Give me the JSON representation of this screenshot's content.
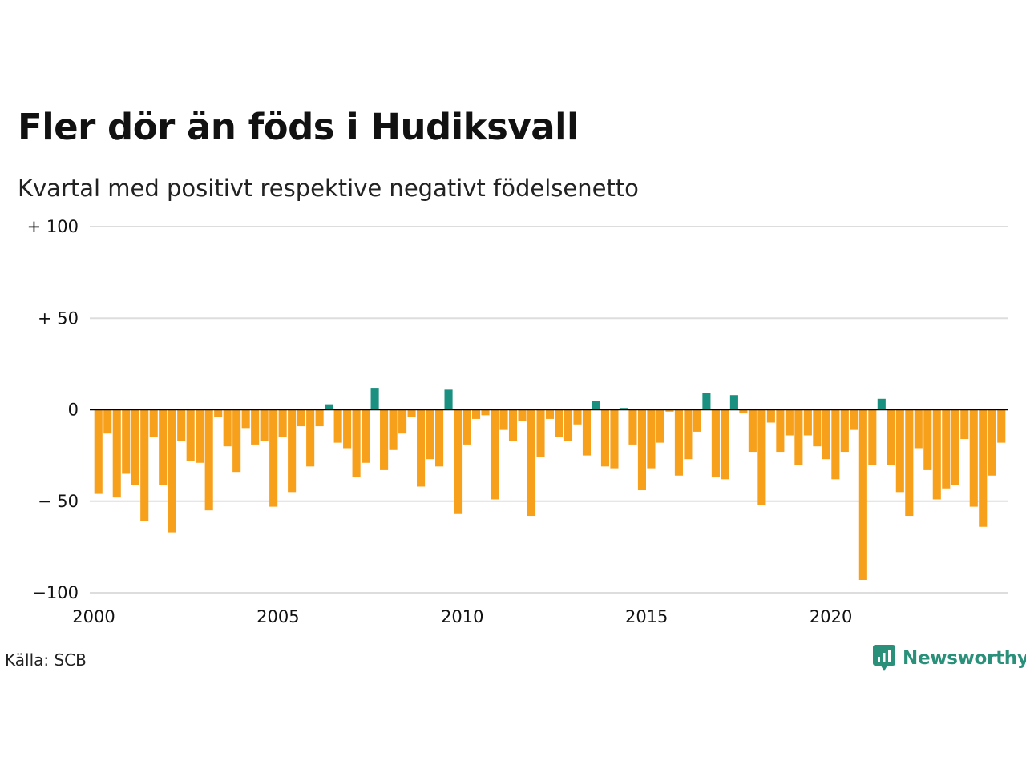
{
  "title": "Fler dör än föds i Hudiksvall",
  "subtitle": "Kvartal med positivt respektive negativt födelsenetto",
  "source": "Källa: SCB",
  "brand": "Newsworthy",
  "colors": {
    "positive": "#1a9080",
    "negative": "#f7a01c",
    "grid": "#dddddd",
    "zero": "#000000",
    "brand": "#2a9079"
  },
  "chart_data": {
    "type": "bar",
    "ylim": [
      -100,
      100
    ],
    "y_ticks": [
      {
        "value": 100,
        "label": "+ 100"
      },
      {
        "value": 50,
        "label": "+  50"
      },
      {
        "value": 0,
        "label": "0"
      },
      {
        "value": -50,
        "label": "− 50"
      },
      {
        "value": -100,
        "label": "−100"
      }
    ],
    "x_ticks": [
      {
        "year": 2000,
        "label": "2000"
      },
      {
        "year": 2005,
        "label": "2005"
      },
      {
        "year": 2010,
        "label": "2010"
      },
      {
        "year": 2015,
        "label": "2015"
      },
      {
        "year": 2020,
        "label": "2020"
      }
    ],
    "first_quarter": "2000Q1",
    "values": [
      -46,
      -13,
      -48,
      -35,
      -41,
      -61,
      -15,
      -41,
      -67,
      -17,
      -28,
      -29,
      -55,
      -4,
      -20,
      -34,
      -10,
      -19,
      -17,
      -53,
      -15,
      -45,
      -9,
      -31,
      -9,
      3,
      -18,
      -21,
      -37,
      -29,
      12,
      -33,
      -22,
      -13,
      -4,
      -42,
      -27,
      -31,
      11,
      -57,
      -19,
      -5,
      -3,
      -49,
      -11,
      -17,
      -6,
      -58,
      -26,
      -5,
      -15,
      -17,
      -8,
      -25,
      5,
      -31,
      -32,
      1,
      -19,
      -44,
      -32,
      -18,
      -1,
      -36,
      -27,
      -12,
      9,
      -37,
      -38,
      8,
      -2,
      -23,
      -52,
      -7,
      -23,
      -14,
      -30,
      -14,
      -20,
      -27,
      -38,
      -23,
      -11,
      -93,
      -30,
      6,
      -30,
      -45,
      -58,
      -21,
      -33,
      -49,
      -43,
      -41,
      -16,
      -53,
      -64,
      -36,
      -18
    ]
  }
}
